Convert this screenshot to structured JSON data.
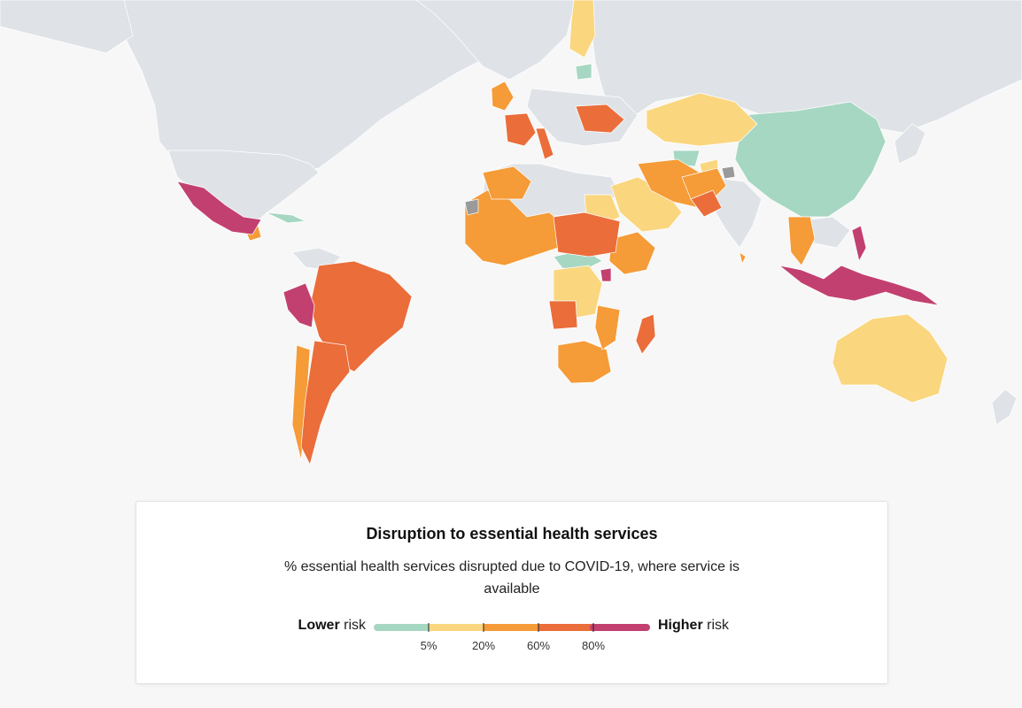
{
  "colors": {
    "ocean": "#f7f7f7",
    "no_data": "#dfe3e7",
    "unavailable": "#9a9a9a",
    "lt5": "#a6d7c3",
    "r5_20": "#fad67f",
    "r20_60": "#f59b37",
    "r60_80": "#ea6d3a",
    "gt80": "#c2406f"
  },
  "legend": {
    "title": "Disruption to essential health services",
    "subtitle": "% essential health services disrupted due to COVID-19, where service is available",
    "lower_bold": "Lower",
    "lower_rest": " risk",
    "higher_bold": "Higher",
    "higher_rest": " risk",
    "ticks": [
      "5%",
      "20%",
      "60%",
      "80%"
    ]
  }
}
